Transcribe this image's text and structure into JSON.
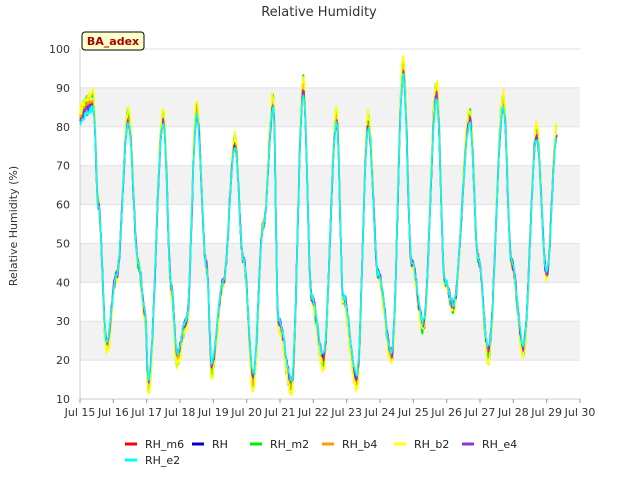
{
  "chart_data": {
    "type": "line",
    "title": "Relative Humidity",
    "ylabel": "Relative Humidity (%)",
    "xlabel": "",
    "site_label": "BA_adex",
    "ylim": [
      10,
      100
    ],
    "yticks": [
      10,
      20,
      30,
      40,
      50,
      60,
      70,
      80,
      90,
      100
    ],
    "xlim": [
      15,
      30
    ],
    "xticks": [
      15,
      16,
      17,
      18,
      19,
      20,
      21,
      22,
      23,
      24,
      25,
      26,
      27,
      28,
      29,
      30
    ],
    "xtick_labels": [
      "Jul 15",
      "Jul 16",
      "Jul 17",
      "Jul 18",
      "Jul 19",
      "Jul 20",
      "Jul 21",
      "Jul 22",
      "Jul 23",
      "Jul 24",
      "Jul 25",
      "Jul 26",
      "Jul 27",
      "Jul 28",
      "Jul 29",
      "Jul 30"
    ],
    "grid": "horizontal bands",
    "legend_position": "bottom",
    "daily_extremes": {
      "x": [
        15.0,
        15.2,
        15.4,
        15.55,
        15.8,
        16.1,
        16.45,
        16.75,
        16.95,
        17.05,
        17.5,
        17.75,
        17.9,
        18.2,
        18.5,
        18.8,
        18.95,
        19.3,
        19.65,
        19.9,
        20.2,
        20.5,
        20.8,
        20.95,
        21.35,
        21.7,
        21.95,
        22.3,
        22.7,
        22.9,
        23.3,
        23.65,
        23.95,
        24.35,
        24.7,
        24.95,
        25.3,
        25.7,
        25.95,
        26.2,
        26.7,
        26.95,
        27.25,
        27.7,
        27.95,
        28.3,
        28.7,
        29.0,
        29.3
      ],
      "y": [
        82,
        85,
        86,
        60,
        24,
        42,
        82,
        45,
        32,
        14,
        82,
        38,
        21,
        30,
        84,
        44,
        18,
        40,
        76,
        46,
        15,
        55,
        86,
        30,
        14,
        90,
        36,
        20,
        82,
        36,
        15,
        81,
        42,
        21,
        95,
        45,
        29,
        89,
        40,
        34,
        82,
        46,
        22,
        86,
        45,
        23,
        78,
        42,
        78
      ]
    },
    "series": [
      {
        "name": "RH_m6",
        "color": "#ff0000",
        "offset": 0.0,
        "jitter": 1.2
      },
      {
        "name": "RH",
        "color": "#0000cc",
        "offset": -0.5,
        "jitter": 1.0
      },
      {
        "name": "RH_m2",
        "color": "#00ee00",
        "offset": 2.0,
        "jitter": 1.5
      },
      {
        "name": "RH_b4",
        "color": "#ff9900",
        "offset": 0.5,
        "jitter": 1.0
      },
      {
        "name": "RH_b2",
        "color": "#ffff00",
        "offset": 3.0,
        "jitter": 1.5
      },
      {
        "name": "RH_e4",
        "color": "#9933cc",
        "offset": -1.0,
        "jitter": 1.4
      },
      {
        "name": "RH_e2",
        "color": "#00ffff",
        "offset": -1.5,
        "jitter": 1.0
      }
    ]
  }
}
